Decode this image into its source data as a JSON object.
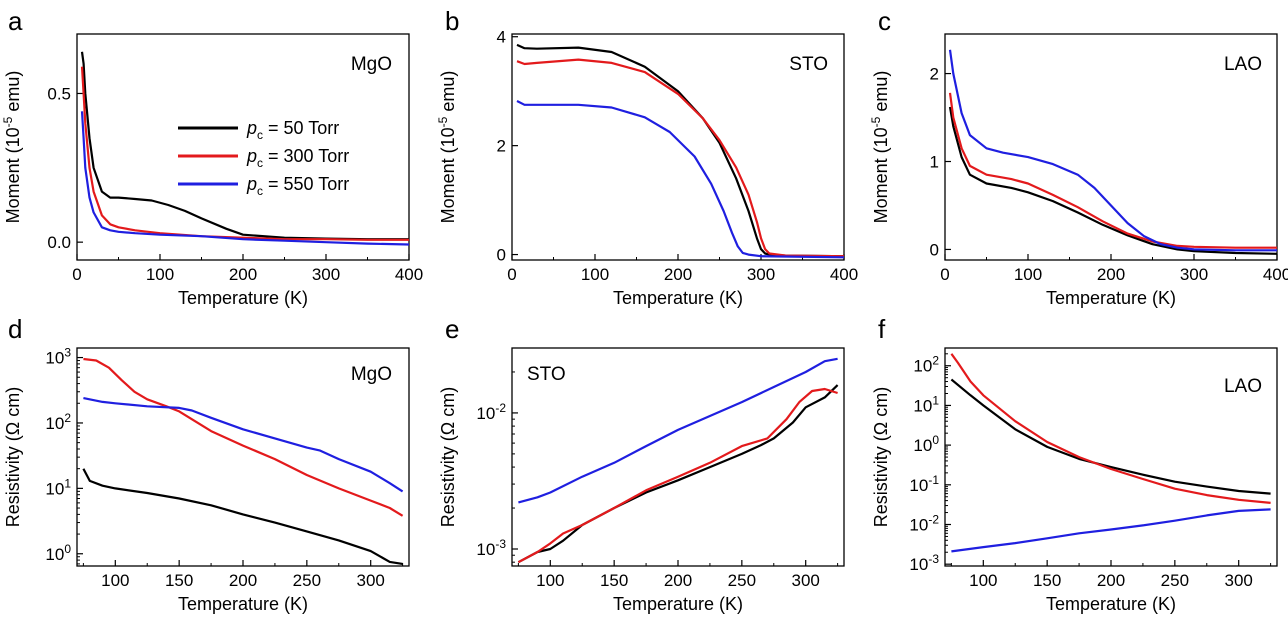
{
  "colors": {
    "black": "#000000",
    "red": "#e31a1c",
    "blue": "#1f1fe0"
  },
  "legend": [
    {
      "label": "p",
      "sub": "c",
      "text": " = 50 Torr",
      "color": "#000000"
    },
    {
      "label": "p",
      "sub": "c",
      "text": " = 300 Torr",
      "color": "#e31a1c"
    },
    {
      "label": "p",
      "sub": "c",
      "text": " = 550 Torr",
      "color": "#1f1fe0"
    }
  ],
  "chart_data": [
    {
      "panel": "a",
      "sample": "MgO",
      "type": "line",
      "xlabel": "Temperature (K)",
      "ylabel_main": "Moment (10",
      "ylabel_sup": "-5",
      "ylabel_end": " emu)",
      "xlim": [
        0,
        400
      ],
      "ylim": [
        -0.06,
        0.7
      ],
      "log": false,
      "xticks": [
        0,
        100,
        200,
        300,
        400
      ],
      "xtick_labels": [
        "0",
        "100",
        "200",
        "300",
        "400"
      ],
      "yticks": [
        0,
        0.5
      ],
      "ytick_labels": [
        "0.0",
        "0.5"
      ],
      "series": [
        {
          "color": "#000000",
          "x": [
            6,
            8,
            10,
            15,
            20,
            30,
            40,
            50,
            70,
            90,
            110,
            130,
            150,
            180,
            200,
            250,
            300,
            350,
            400
          ],
          "y": [
            0.64,
            0.6,
            0.5,
            0.35,
            0.25,
            0.17,
            0.15,
            0.15,
            0.145,
            0.14,
            0.125,
            0.105,
            0.08,
            0.045,
            0.025,
            0.015,
            0.012,
            0.01,
            0.01
          ]
        },
        {
          "color": "#e31a1c",
          "x": [
            6,
            8,
            10,
            15,
            20,
            30,
            40,
            50,
            70,
            100,
            150,
            200,
            250,
            300,
            350,
            400
          ],
          "y": [
            0.59,
            0.5,
            0.4,
            0.25,
            0.17,
            0.09,
            0.06,
            0.05,
            0.04,
            0.03,
            0.02,
            0.015,
            0.01,
            0.01,
            0.008,
            0.008
          ]
        },
        {
          "color": "#1f1fe0",
          "x": [
            6,
            8,
            10,
            15,
            20,
            30,
            40,
            50,
            70,
            100,
            150,
            200,
            250,
            300,
            350,
            400
          ],
          "y": [
            0.44,
            0.35,
            0.25,
            0.15,
            0.1,
            0.05,
            0.04,
            0.035,
            0.03,
            0.025,
            0.02,
            0.01,
            0.005,
            0.0,
            -0.005,
            -0.008
          ]
        }
      ]
    },
    {
      "panel": "b",
      "sample": "STO",
      "type": "line",
      "xlabel": "Temperature (K)",
      "ylabel_main": "Moment (10",
      "ylabel_sup": "-5",
      "ylabel_end": " emu)",
      "xlim": [
        0,
        400
      ],
      "ylim": [
        -0.1,
        4.05
      ],
      "log": false,
      "xticks": [
        0,
        100,
        200,
        300,
        400
      ],
      "xtick_labels": [
        "0",
        "100",
        "200",
        "300",
        "400"
      ],
      "yticks": [
        0,
        2,
        4
      ],
      "ytick_labels": [
        "0",
        "2",
        "4"
      ],
      "series": [
        {
          "color": "#000000",
          "x": [
            6,
            15,
            30,
            80,
            120,
            160,
            200,
            230,
            250,
            270,
            285,
            295,
            300,
            305,
            310,
            330,
            400
          ],
          "y": [
            3.85,
            3.79,
            3.78,
            3.8,
            3.72,
            3.45,
            3.0,
            2.5,
            2.05,
            1.4,
            0.8,
            0.3,
            0.1,
            0.02,
            0.0,
            -0.02,
            -0.03
          ]
        },
        {
          "color": "#e31a1c",
          "x": [
            6,
            15,
            30,
            80,
            120,
            160,
            200,
            230,
            250,
            270,
            285,
            295,
            300,
            305,
            310,
            330,
            400
          ],
          "y": [
            3.55,
            3.5,
            3.52,
            3.58,
            3.52,
            3.35,
            2.95,
            2.5,
            2.1,
            1.6,
            1.1,
            0.6,
            0.3,
            0.1,
            0.02,
            -0.02,
            -0.03
          ]
        },
        {
          "color": "#1f1fe0",
          "x": [
            6,
            15,
            30,
            80,
            120,
            160,
            190,
            220,
            240,
            255,
            265,
            272,
            278,
            285,
            300,
            400
          ],
          "y": [
            2.82,
            2.75,
            2.75,
            2.75,
            2.7,
            2.52,
            2.25,
            1.8,
            1.3,
            0.8,
            0.4,
            0.15,
            0.03,
            0.0,
            -0.03,
            -0.05
          ]
        }
      ]
    },
    {
      "panel": "c",
      "sample": "LAO",
      "type": "line",
      "xlabel": "Temperature (K)",
      "ylabel_main": "Moment (10",
      "ylabel_sup": "-5",
      "ylabel_end": " emu)",
      "xlim": [
        0,
        400
      ],
      "ylim": [
        -0.12,
        2.45
      ],
      "log": false,
      "xticks": [
        0,
        100,
        200,
        300,
        400
      ],
      "xtick_labels": [
        "0",
        "100",
        "200",
        "300",
        "400"
      ],
      "yticks": [
        0,
        1,
        2
      ],
      "ytick_labels": [
        "0",
        "1",
        "2"
      ],
      "series": [
        {
          "color": "#000000",
          "x": [
            6,
            10,
            20,
            30,
            50,
            80,
            100,
            130,
            160,
            190,
            220,
            250,
            280,
            300,
            350,
            400
          ],
          "y": [
            1.62,
            1.4,
            1.05,
            0.85,
            0.75,
            0.7,
            0.65,
            0.55,
            0.42,
            0.28,
            0.16,
            0.06,
            0.0,
            -0.02,
            -0.04,
            -0.05
          ]
        },
        {
          "color": "#e31a1c",
          "x": [
            6,
            10,
            20,
            30,
            50,
            80,
            100,
            130,
            160,
            190,
            220,
            250,
            280,
            300,
            350,
            400
          ],
          "y": [
            1.78,
            1.5,
            1.15,
            0.95,
            0.85,
            0.8,
            0.75,
            0.62,
            0.48,
            0.32,
            0.18,
            0.09,
            0.04,
            0.03,
            0.02,
            0.02
          ]
        },
        {
          "color": "#1f1fe0",
          "x": [
            6,
            10,
            20,
            30,
            50,
            70,
            100,
            130,
            160,
            180,
            200,
            220,
            240,
            260,
            280,
            300,
            350,
            400
          ],
          "y": [
            2.27,
            2.0,
            1.55,
            1.3,
            1.15,
            1.1,
            1.05,
            0.97,
            0.85,
            0.7,
            0.5,
            0.3,
            0.15,
            0.06,
            0.02,
            0.0,
            -0.01,
            -0.01
          ]
        }
      ]
    },
    {
      "panel": "d",
      "sample": "MgO",
      "type": "line",
      "xlabel": "Temperature (K)",
      "ylabel_main": "Resistivity (Ω cm)",
      "ylabel_sup": "",
      "ylabel_end": "",
      "xlim": [
        70,
        330
      ],
      "ylim": [
        0.65,
        1400
      ],
      "log": true,
      "xticks": [
        100,
        150,
        200,
        250,
        300
      ],
      "xtick_labels": [
        "100",
        "150",
        "200",
        "250",
        "300"
      ],
      "yticks": [
        1,
        10,
        100,
        1000
      ],
      "ytick_labels": [
        "10^0",
        "10^1",
        "10^2",
        "10^3"
      ],
      "series": [
        {
          "color": "#000000",
          "x": [
            75,
            80,
            90,
            100,
            125,
            150,
            175,
            200,
            225,
            250,
            275,
            300,
            315,
            325
          ],
          "y": [
            20,
            13,
            11,
            10,
            8.5,
            7,
            5.5,
            4,
            3,
            2.2,
            1.6,
            1.1,
            0.75,
            0.7
          ]
        },
        {
          "color": "#e31a1c",
          "x": [
            75,
            85,
            95,
            105,
            115,
            125,
            140,
            150,
            175,
            200,
            225,
            250,
            275,
            300,
            315,
            325
          ],
          "y": [
            950,
            900,
            700,
            450,
            300,
            230,
            180,
            150,
            75,
            45,
            28,
            16,
            10,
            6.5,
            5,
            3.8
          ]
        },
        {
          "color": "#1f1fe0",
          "x": [
            75,
            90,
            100,
            125,
            150,
            160,
            175,
            200,
            225,
            250,
            260,
            275,
            300,
            315,
            325
          ],
          "y": [
            240,
            210,
            200,
            180,
            170,
            155,
            120,
            80,
            58,
            42,
            38,
            28,
            18,
            12,
            9
          ]
        }
      ]
    },
    {
      "panel": "e",
      "sample": "STO",
      "type": "line",
      "xlabel": "Temperature (K)",
      "ylabel_main": "Resistivity (Ω cm)",
      "ylabel_sup": "",
      "ylabel_end": "",
      "xlim": [
        70,
        330
      ],
      "ylim": [
        0.00075,
        0.03
      ],
      "log": true,
      "xticks": [
        100,
        150,
        200,
        250,
        300
      ],
      "xtick_labels": [
        "100",
        "150",
        "200",
        "250",
        "300"
      ],
      "yticks": [
        0.001,
        0.01
      ],
      "ytick_labels": [
        "10^-3",
        "10^-2"
      ],
      "series": [
        {
          "color": "#000000",
          "x": [
            75,
            90,
            100,
            110,
            125,
            150,
            175,
            200,
            225,
            250,
            265,
            275,
            290,
            300,
            315,
            325
          ],
          "y": [
            0.0008,
            0.00095,
            0.001,
            0.00115,
            0.0015,
            0.002,
            0.0026,
            0.0032,
            0.004,
            0.005,
            0.0058,
            0.0065,
            0.0085,
            0.011,
            0.013,
            0.016
          ]
        },
        {
          "color": "#e31a1c",
          "x": [
            75,
            90,
            100,
            110,
            125,
            150,
            175,
            200,
            225,
            250,
            270,
            285,
            295,
            305,
            315,
            325
          ],
          "y": [
            0.0008,
            0.00095,
            0.0011,
            0.0013,
            0.0015,
            0.002,
            0.0027,
            0.0034,
            0.0043,
            0.0057,
            0.0065,
            0.009,
            0.012,
            0.0145,
            0.015,
            0.014
          ]
        },
        {
          "color": "#1f1fe0",
          "x": [
            75,
            90,
            100,
            125,
            150,
            175,
            200,
            225,
            250,
            275,
            300,
            315,
            325
          ],
          "y": [
            0.0022,
            0.0024,
            0.0026,
            0.0034,
            0.0043,
            0.0057,
            0.0075,
            0.0095,
            0.012,
            0.0155,
            0.02,
            0.024,
            0.025
          ]
        }
      ]
    },
    {
      "panel": "f",
      "sample": "LAO",
      "type": "line",
      "xlabel": "Temperature (K)",
      "ylabel_main": "Resistivity (Ω cm)",
      "ylabel_sup": "",
      "ylabel_end": "",
      "xlim": [
        70,
        330
      ],
      "ylim": [
        0.0009,
        280
      ],
      "log": true,
      "xticks": [
        100,
        150,
        200,
        250,
        300
      ],
      "xtick_labels": [
        "100",
        "150",
        "200",
        "250",
        "300"
      ],
      "yticks": [
        0.001,
        0.01,
        0.1,
        1,
        10,
        100
      ],
      "ytick_labels": [
        "10^-3",
        "10^-2",
        "10^-1",
        "10^0",
        "10^1",
        "10^2"
      ],
      "series": [
        {
          "color": "#000000",
          "x": [
            75,
            90,
            100,
            125,
            150,
            175,
            200,
            225,
            250,
            275,
            300,
            325
          ],
          "y": [
            45,
            18,
            10,
            2.5,
            0.9,
            0.45,
            0.28,
            0.18,
            0.12,
            0.09,
            0.07,
            0.06
          ]
        },
        {
          "color": "#e31a1c",
          "x": [
            75,
            80,
            90,
            100,
            125,
            150,
            175,
            200,
            225,
            250,
            275,
            300,
            325
          ],
          "y": [
            200,
            120,
            40,
            18,
            4,
            1.2,
            0.5,
            0.25,
            0.14,
            0.08,
            0.055,
            0.042,
            0.035
          ]
        },
        {
          "color": "#1f1fe0",
          "x": [
            75,
            100,
            125,
            150,
            175,
            200,
            225,
            250,
            275,
            300,
            325
          ],
          "y": [
            0.0021,
            0.0027,
            0.0034,
            0.0045,
            0.006,
            0.0075,
            0.0095,
            0.0125,
            0.017,
            0.022,
            0.024
          ]
        }
      ]
    }
  ]
}
